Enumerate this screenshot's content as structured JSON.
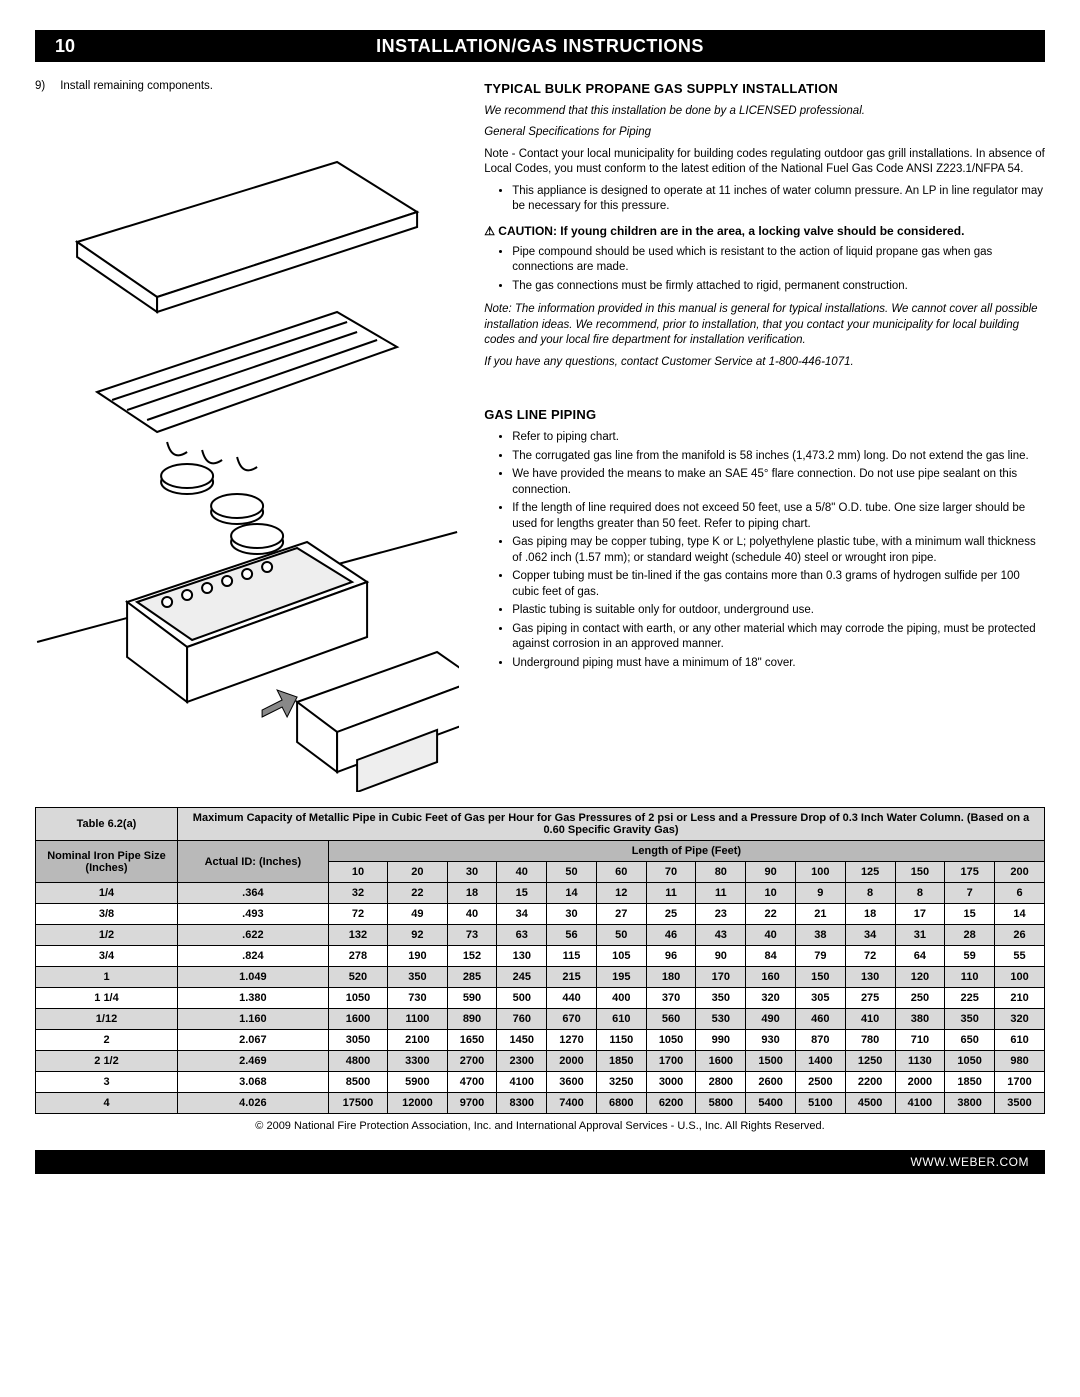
{
  "header": {
    "page": "10",
    "title": "INSTALLATION/GAS INSTRUCTIONS"
  },
  "step": {
    "num": "9)",
    "text": "Install remaining components."
  },
  "sec1": {
    "heading": "TYPICAL BULK PROPANE GAS SUPPLY INSTALLATION",
    "rec": "We recommend that this installation be done by a LICENSED professional.",
    "spec": "General Specifications for Piping",
    "note": "Note - Contact your local municipality for building codes regulating outdoor gas grill installations. In absence of Local Codes, you must conform to the latest edition of the National Fuel Gas Code ANSI Z223.1/NFPA 54.",
    "b1": "This appliance is designed to operate at 11 inches of water column pressure. An LP in line regulator may be necessary for this pressure.",
    "caution": "CAUTION: If young children are in the area, a locking valve should be considered.",
    "b2": "Pipe compound should be used which is resistant to the action of liquid propane gas when gas connections are made.",
    "b3": "The gas connections must be firmly attached to rigid, permanent construction.",
    "note2": "Note: The information provided in this manual is general for typical installations. We cannot cover all possible installation ideas. We recommend, prior to installation, that you contact your municipality for local building codes and your local fire department for installation verification.",
    "cs": "If you have any questions, contact Customer Service at 1-800-446-1071."
  },
  "sec2": {
    "heading": "GAS LINE PIPING",
    "b1": "Refer to piping chart.",
    "b2": "The corrugated gas line from the manifold is 58 inches (1,473.2 mm) long. Do not extend the gas line.",
    "b3": "We have provided the means to make an SAE 45° flare connection. Do not use pipe sealant on this connection.",
    "b4": "If the length of line required does not exceed 50 feet, use a 5/8\" O.D. tube. One size larger should be used for lengths greater than 50 feet. Refer to piping chart.",
    "b5": "Gas piping may be copper tubing, type K or L; polyethylene plastic tube, with a minimum wall thickness of .062 inch (1.57 mm); or standard weight (schedule 40) steel or wrought iron pipe.",
    "b6": "Copper tubing must be tin-lined if the gas contains more than 0.3 grams of hydrogen sulfide per 100 cubic feet of gas.",
    "b7": "Plastic tubing is suitable only for outdoor, underground use.",
    "b8": "Gas piping in contact with earth, or any other material which may corrode the piping, must be protected against corrosion in an approved manner.",
    "b9": "Underground piping must have a minimum of 18\" cover."
  },
  "table": {
    "label": "Table 6.2(a)",
    "caption": "Maximum Capacity of Metallic Pipe in Cubic Feet of Gas per Hour for Gas Pressures of 2 psi or Less and a Pressure Drop of 0.3 Inch Water Column. (Based on a 0.60 Specific Gravity Gas)",
    "col1": "Nominal Iron Pipe Size (Inches)",
    "col2": "Actual ID: (Inches)",
    "lenhdr": "Length of Pipe (Feet)",
    "lengths": [
      "10",
      "20",
      "30",
      "40",
      "50",
      "60",
      "70",
      "80",
      "90",
      "100",
      "125",
      "150",
      "175",
      "200"
    ],
    "rows": [
      {
        "n": "1/4",
        "id": ".364",
        "v": [
          "32",
          "22",
          "18",
          "15",
          "14",
          "12",
          "11",
          "11",
          "10",
          "9",
          "8",
          "8",
          "7",
          "6"
        ]
      },
      {
        "n": "3/8",
        "id": ".493",
        "v": [
          "72",
          "49",
          "40",
          "34",
          "30",
          "27",
          "25",
          "23",
          "22",
          "21",
          "18",
          "17",
          "15",
          "14"
        ]
      },
      {
        "n": "1/2",
        "id": ".622",
        "v": [
          "132",
          "92",
          "73",
          "63",
          "56",
          "50",
          "46",
          "43",
          "40",
          "38",
          "34",
          "31",
          "28",
          "26"
        ]
      },
      {
        "n": "3/4",
        "id": ".824",
        "v": [
          "278",
          "190",
          "152",
          "130",
          "115",
          "105",
          "96",
          "90",
          "84",
          "79",
          "72",
          "64",
          "59",
          "55"
        ]
      },
      {
        "n": "1",
        "id": "1.049",
        "v": [
          "520",
          "350",
          "285",
          "245",
          "215",
          "195",
          "180",
          "170",
          "160",
          "150",
          "130",
          "120",
          "110",
          "100"
        ]
      },
      {
        "n": "1 1/4",
        "id": "1.380",
        "v": [
          "1050",
          "730",
          "590",
          "500",
          "440",
          "400",
          "370",
          "350",
          "320",
          "305",
          "275",
          "250",
          "225",
          "210"
        ]
      },
      {
        "n": "1/12",
        "id": "1.160",
        "v": [
          "1600",
          "1100",
          "890",
          "760",
          "670",
          "610",
          "560",
          "530",
          "490",
          "460",
          "410",
          "380",
          "350",
          "320"
        ]
      },
      {
        "n": "2",
        "id": "2.067",
        "v": [
          "3050",
          "2100",
          "1650",
          "1450",
          "1270",
          "1150",
          "1050",
          "990",
          "930",
          "870",
          "780",
          "710",
          "650",
          "610"
        ]
      },
      {
        "n": "2 1/2",
        "id": "2.469",
        "v": [
          "4800",
          "3300",
          "2700",
          "2300",
          "2000",
          "1850",
          "1700",
          "1600",
          "1500",
          "1400",
          "1250",
          "1130",
          "1050",
          "980"
        ]
      },
      {
        "n": "3",
        "id": "3.068",
        "v": [
          "8500",
          "5900",
          "4700",
          "4100",
          "3600",
          "3250",
          "3000",
          "2800",
          "2600",
          "2500",
          "2200",
          "2000",
          "1850",
          "1700"
        ]
      },
      {
        "n": "4",
        "id": "4.026",
        "v": [
          "17500",
          "12000",
          "9700",
          "8300",
          "7400",
          "6800",
          "6200",
          "5800",
          "5400",
          "5100",
          "4500",
          "4100",
          "3800",
          "3500"
        ]
      }
    ],
    "copyright": "© 2009 National Fire Protection Association, Inc. and International Approval Services - U.S., Inc. All Rights Reserved."
  },
  "footer": {
    "url": "WWW.WEBER.COM"
  }
}
